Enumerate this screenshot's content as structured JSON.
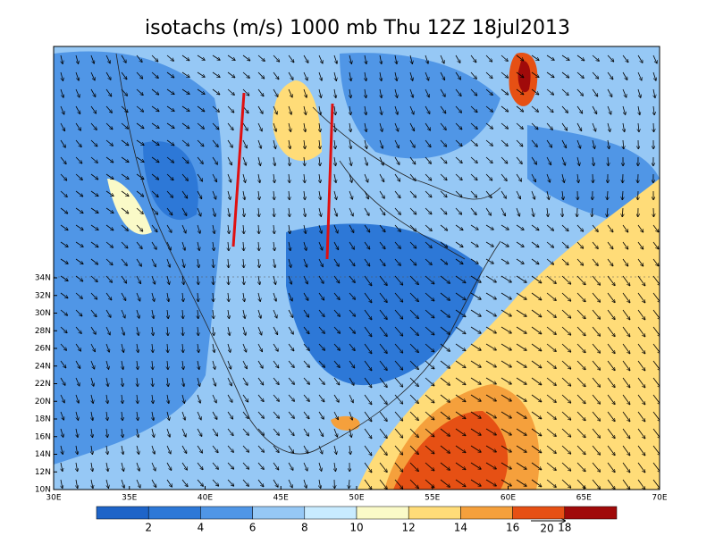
{
  "title": "isotachs (m/s) 1000 mb Thu 12Z 18jul2013",
  "lat_labels": [
    "10N",
    "12N",
    "14N",
    "16N",
    "18N",
    "20N",
    "22N",
    "24N",
    "26N",
    "28N",
    "30N",
    "32N",
    "34N"
  ],
  "lon_labels": [
    "30E",
    "35E",
    "40E",
    "45E",
    "50E",
    "55E",
    "60E",
    "65E",
    "70E"
  ],
  "colorbar": {
    "labels": [
      "2",
      "4",
      "6",
      "8",
      "10",
      "12",
      "14",
      "16",
      "18"
    ],
    "colors": [
      "#1e64c8",
      "#2d78d7",
      "#5096e6",
      "#96c8f5",
      "#c8ebff",
      "#fafac8",
      "#ffdc78",
      "#f5a03c",
      "#e65014",
      "#a00a0a"
    ]
  },
  "reference_vector": "20"
}
